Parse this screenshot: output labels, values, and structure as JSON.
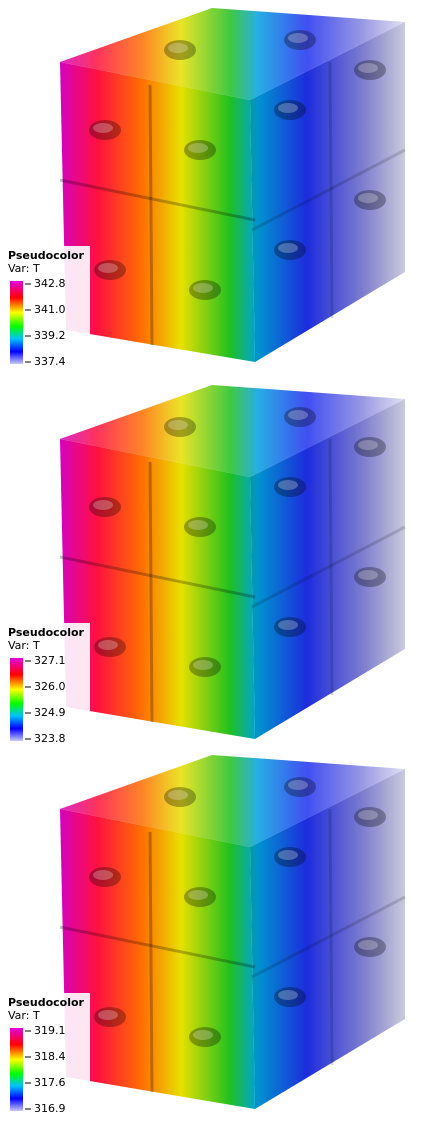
{
  "panels": [
    {
      "legend": {
        "title": "Pseudocolor",
        "variable": "Var: T",
        "ticks": [
          "342.8",
          "341.0",
          "339.2",
          "337.4"
        ]
      }
    },
    {
      "legend": {
        "title": "Pseudocolor",
        "variable": "Var: T",
        "ticks": [
          "327.1",
          "326.0",
          "324.9",
          "323.8"
        ]
      }
    },
    {
      "legend": {
        "title": "Pseudocolor",
        "variable": "Var: T",
        "ticks": [
          "319.1",
          "318.4",
          "317.6",
          "316.9"
        ]
      }
    }
  ]
}
